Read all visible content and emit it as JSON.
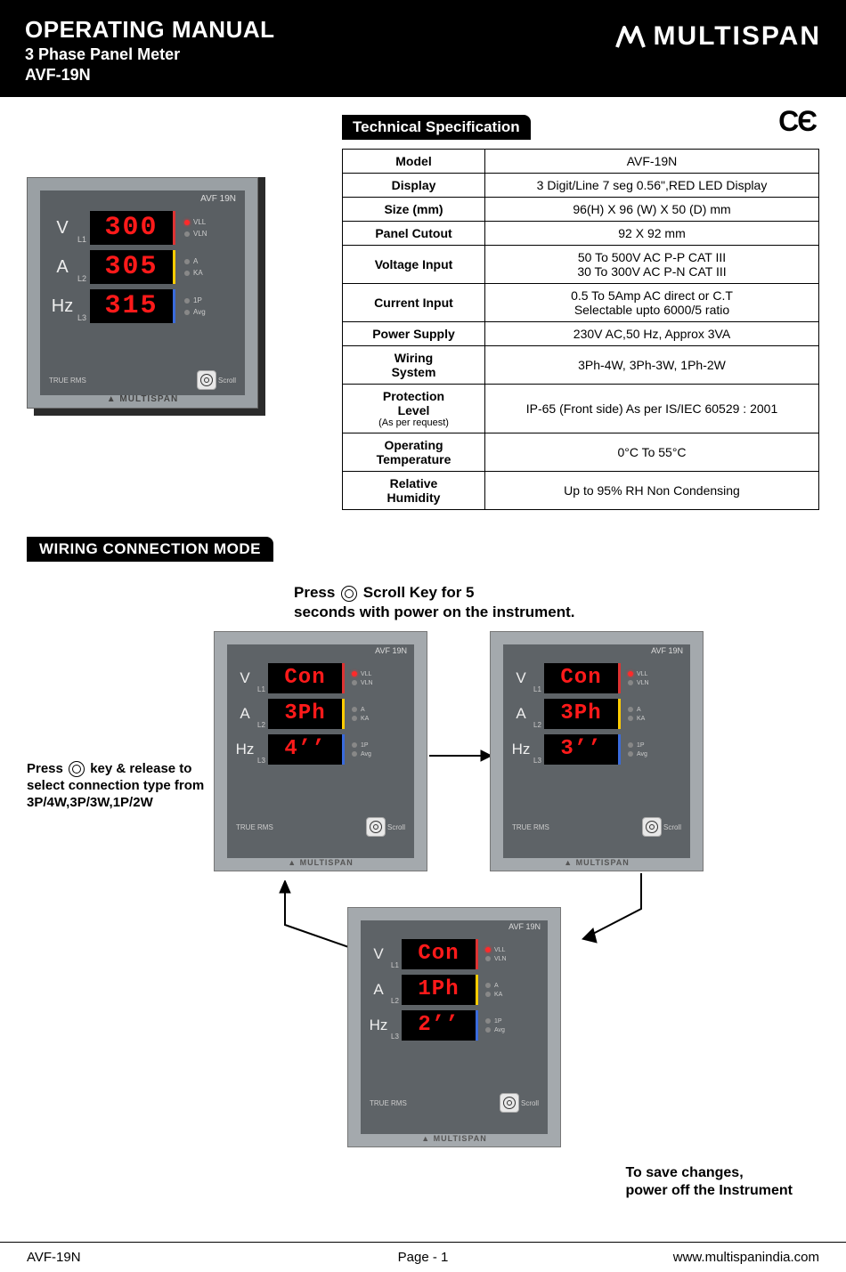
{
  "header": {
    "title": "OPERATING MANUAL",
    "subtitle1": "3 Phase Panel Meter",
    "subtitle2": "AVF-19N",
    "brand": "MULTISPAN"
  },
  "ce_mark": "CЄ",
  "section_labels": {
    "tech_spec": "Technical Specification",
    "wiring": "WIRING CONNECTION MODE"
  },
  "spec_table": {
    "rows": [
      {
        "label": "Model",
        "value": "AVF-19N"
      },
      {
        "label": "Display",
        "value": "3 Digit/Line 7 seg 0.56\",RED LED Display"
      },
      {
        "label": "Size (mm)",
        "value": "96(H) X 96 (W) X 50 (D) mm"
      },
      {
        "label": "Panel Cutout",
        "value": "92 X 92 mm"
      },
      {
        "label": "Voltage Input",
        "value": "50 To 500V AC P-P CAT III\n30 To 300V AC P-N CAT III"
      },
      {
        "label": "Current Input",
        "value": "0.5 To 5Amp AC direct or C.T\nSelectable upto 6000/5 ratio"
      },
      {
        "label": "Power Supply",
        "value": "230V AC,50 Hz, Approx 3VA"
      },
      {
        "label": "Wiring\nSystem",
        "value": "3Ph-4W, 3Ph-3W, 1Ph-2W"
      },
      {
        "label": "Protection\nLevel",
        "sub": "(As per request)",
        "value": "IP-65 (Front side) As per IS/IEC 60529 : 2001"
      },
      {
        "label": "Operating\nTemperature",
        "value": "0°C To  55°C"
      },
      {
        "label": "Relative\nHumidity",
        "value": "Up to 95% RH Non Condensing"
      }
    ]
  },
  "device": {
    "model_badge": "AVF 19N",
    "brand_badge": "MULTISPAN",
    "rms_badge": "TRUE RMS",
    "scroll_label": "Scroll",
    "units": [
      "V",
      "A",
      "Hz"
    ],
    "lines": [
      "L1",
      "L2",
      "L3"
    ],
    "led_labels": [
      "VLL",
      "VLN",
      "A",
      "KA",
      "1P",
      "Avg"
    ],
    "main_readings": [
      "300",
      "305",
      "315"
    ],
    "border_colors": [
      "#d33",
      "#ffcc00",
      "#3a6bdc"
    ],
    "led_active_index": 0
  },
  "wiring": {
    "instr_top_before": "Press",
    "instr_top_after": "Scroll Key for 5\nseconds with power on the instrument.",
    "instr_left_before": "Press",
    "instr_left_after": "key & release to select connection type from 3P/4W,3P/3W,1P/2W",
    "instr_save": "To save changes,\npower off the Instrument",
    "meters": [
      {
        "readings": [
          "Con",
          "3Ph",
          "4’’"
        ]
      },
      {
        "readings": [
          "Con",
          "3Ph",
          "3’’"
        ]
      },
      {
        "readings": [
          "Con",
          "1Ph",
          "2’’"
        ]
      }
    ]
  },
  "footer": {
    "left": "AVF-19N",
    "center": "Page - 1",
    "right": "www.multispanindia.com"
  },
  "colors": {
    "led_red": "#ff1a1a",
    "meter_bezel": "#9aa0a4",
    "meter_face": "#5a5f63",
    "header_bg": "#000000"
  }
}
